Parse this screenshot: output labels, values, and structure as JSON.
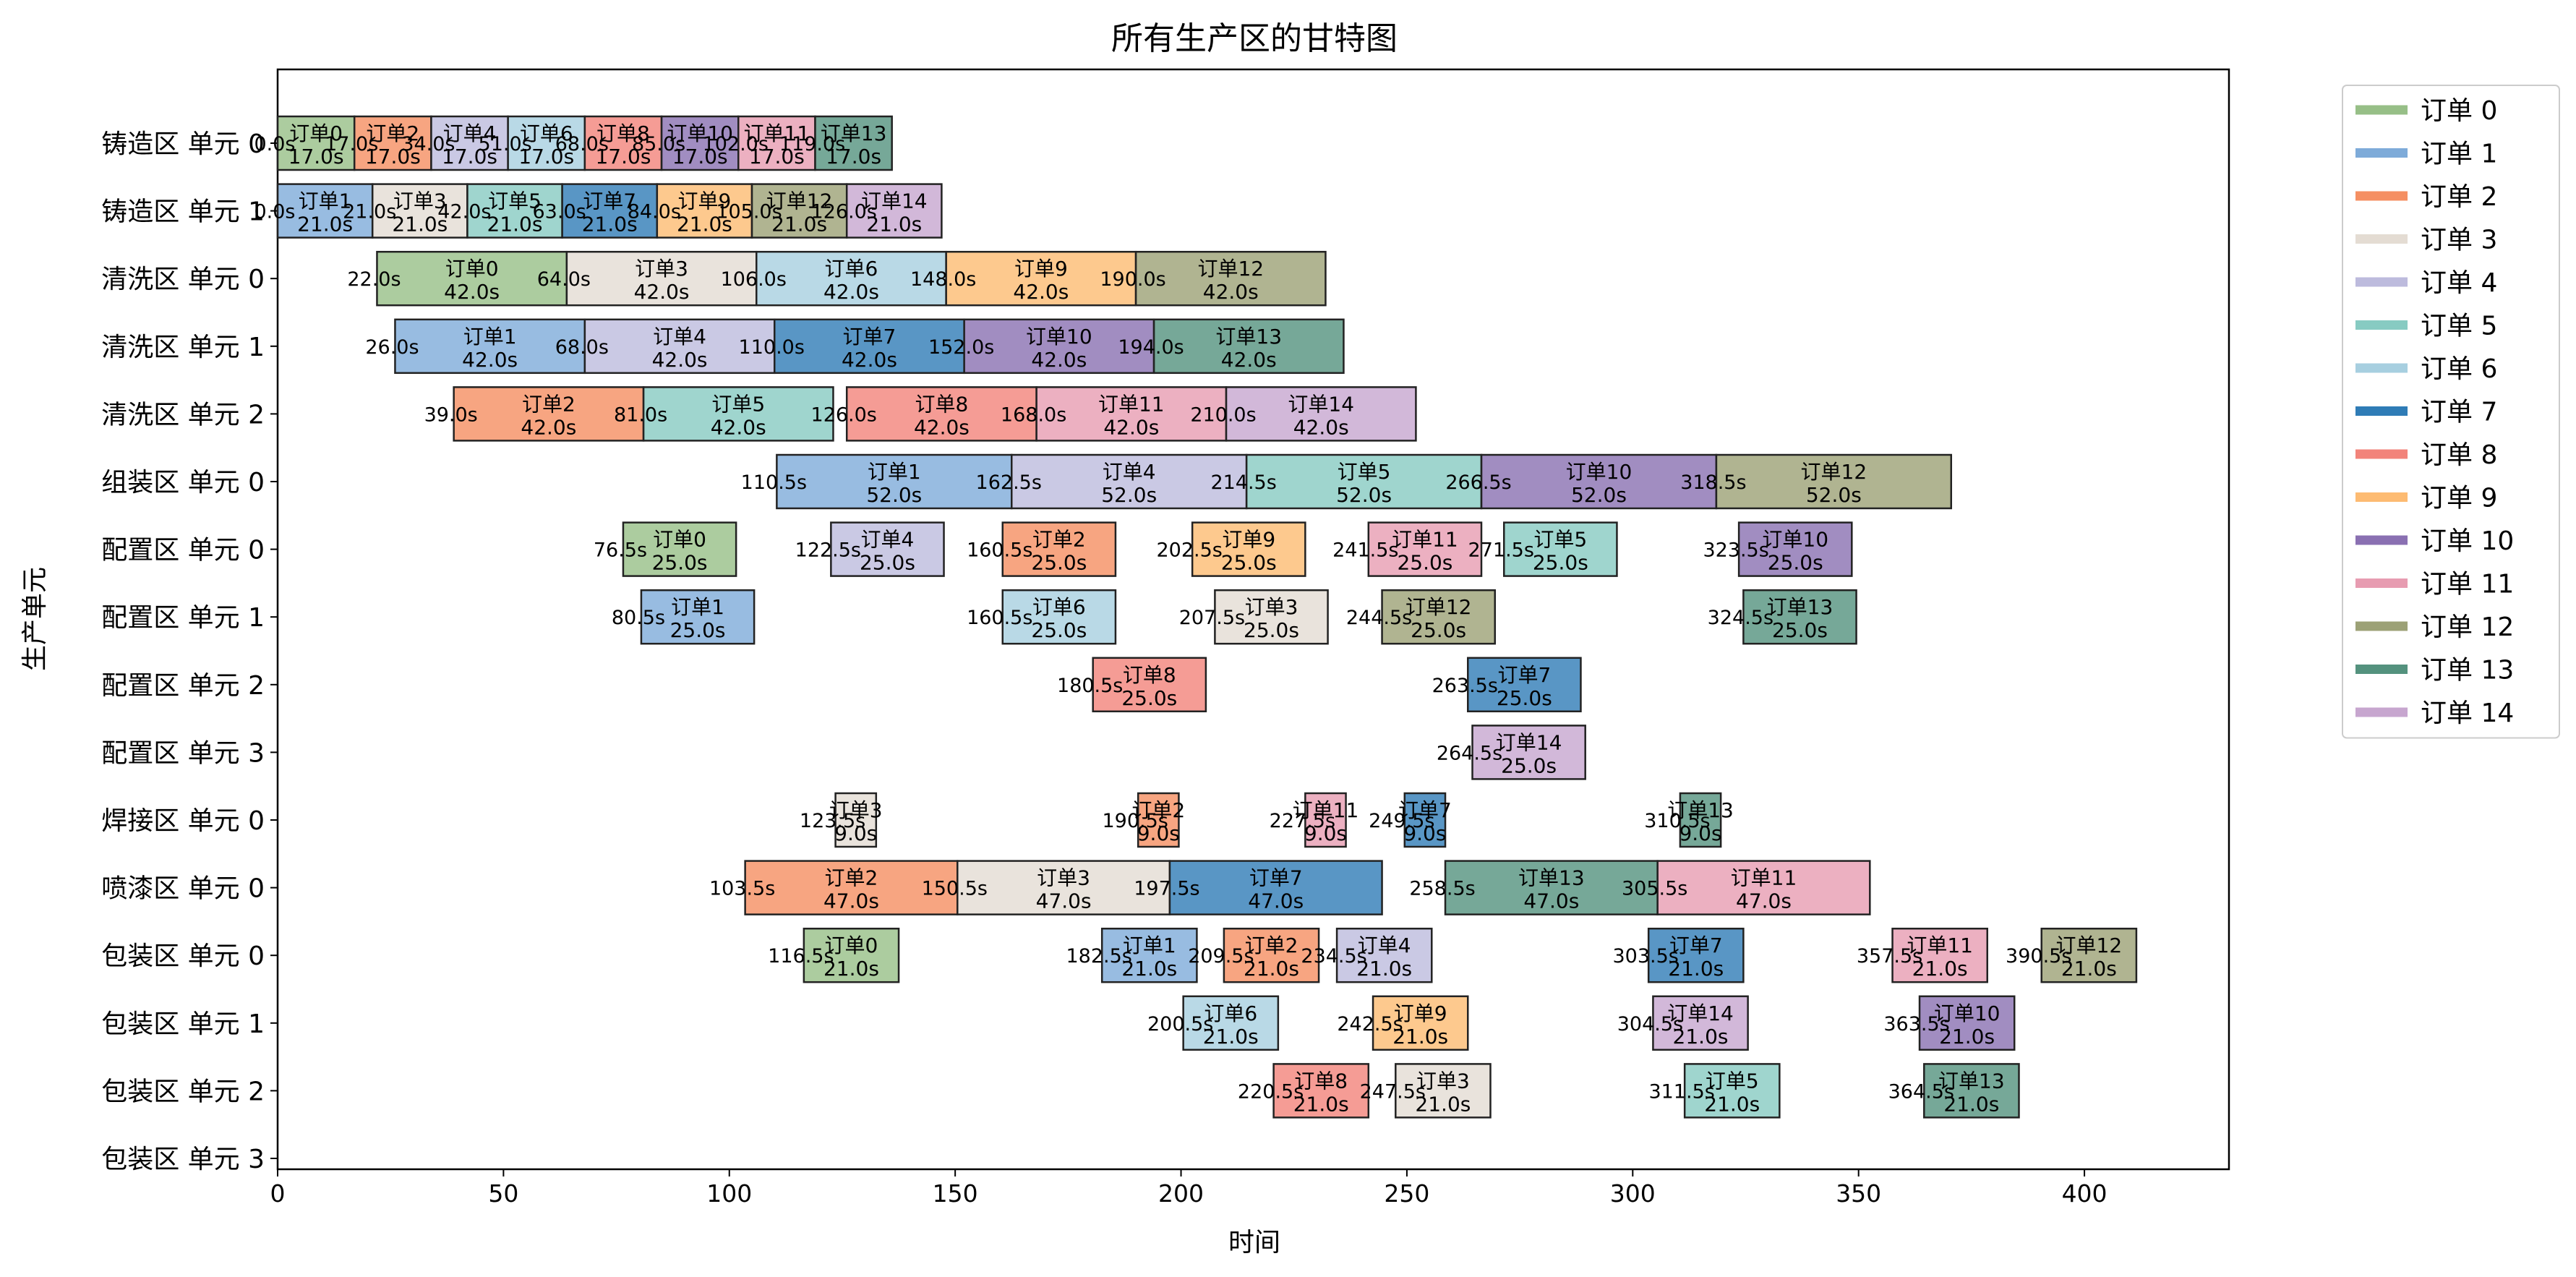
{
  "chart_data": {
    "type": "gantt",
    "title": "所有生产区的甘特图",
    "xlabel": "时间",
    "ylabel": "生产单元",
    "xlim": [
      0,
      432
    ],
    "xticks": [
      0,
      50,
      100,
      150,
      200,
      250,
      300,
      350,
      400
    ],
    "rows": [
      "铸造区 单元 0",
      "铸造区 单元 1",
      "清洗区 单元 0",
      "清洗区 单元 1",
      "清洗区 单元 2",
      "组装区 单元 0",
      "配置区 单元 0",
      "配置区 单元 1",
      "配置区 单元 2",
      "配置区 单元 3",
      "焊接区 单元 0",
      "喷漆区 单元 0",
      "包装区 单元 0",
      "包装区 单元 1",
      "包装区 单元 2",
      "包装区 单元 3"
    ],
    "series": [
      {
        "name": "订单 0",
        "color": "#97bf87"
      },
      {
        "name": "订单 1",
        "color": "#7eabd9"
      },
      {
        "name": "订单 2",
        "color": "#f58f62"
      },
      {
        "name": "订单 3",
        "color": "#e4dcd3"
      },
      {
        "name": "订单 4",
        "color": "#bdbbdd"
      },
      {
        "name": "订单 5",
        "color": "#87cbc2"
      },
      {
        "name": "订单 6",
        "color": "#a7cfe0"
      },
      {
        "name": "订单 7",
        "color": "#2f7cb6"
      },
      {
        "name": "订单 8",
        "color": "#f2837a"
      },
      {
        "name": "订单 9",
        "color": "#fdbb72"
      },
      {
        "name": "订单 10",
        "color": "#8a70b2"
      },
      {
        "name": "订单 11",
        "color": "#e79cb1"
      },
      {
        "name": "订单 12",
        "color": "#9ca176"
      },
      {
        "name": "订单 13",
        "color": "#54927e"
      },
      {
        "name": "订单 14",
        "color": "#c7a6cf"
      }
    ],
    "bars": [
      {
        "row": 0,
        "order": 0,
        "start": 0,
        "duration": 17,
        "label": "订单0",
        "dur_label": "17.0s",
        "start_label": "0.0s"
      },
      {
        "row": 0,
        "order": 2,
        "start": 17,
        "duration": 17,
        "label": "订单2",
        "dur_label": "17.0s",
        "start_label": "17.0s"
      },
      {
        "row": 0,
        "order": 4,
        "start": 34,
        "duration": 17,
        "label": "订单4",
        "dur_label": "17.0s",
        "start_label": "34.0s"
      },
      {
        "row": 0,
        "order": 6,
        "start": 51,
        "duration": 17,
        "label": "订单6",
        "dur_label": "17.0s",
        "start_label": "51.0s"
      },
      {
        "row": 0,
        "order": 8,
        "start": 68,
        "duration": 17,
        "label": "订单8",
        "dur_label": "17.0s",
        "start_label": "68.0s"
      },
      {
        "row": 0,
        "order": 10,
        "start": 85,
        "duration": 17,
        "label": "订单10",
        "dur_label": "17.0s",
        "start_label": "85.0s"
      },
      {
        "row": 0,
        "order": 11,
        "start": 102,
        "duration": 17,
        "label": "订单11",
        "dur_label": "17.0s",
        "start_label": "102.0s"
      },
      {
        "row": 0,
        "order": 13,
        "start": 119,
        "duration": 17,
        "label": "订单13",
        "dur_label": "17.0s",
        "start_label": "119.0s"
      },
      {
        "row": 1,
        "order": 1,
        "start": 0,
        "duration": 21,
        "label": "订单1",
        "dur_label": "21.0s",
        "start_label": "0.0s"
      },
      {
        "row": 1,
        "order": 3,
        "start": 21,
        "duration": 21,
        "label": "订单3",
        "dur_label": "21.0s",
        "start_label": "21.0s"
      },
      {
        "row": 1,
        "order": 5,
        "start": 42,
        "duration": 21,
        "label": "订单5",
        "dur_label": "21.0s",
        "start_label": "42.0s"
      },
      {
        "row": 1,
        "order": 7,
        "start": 63,
        "duration": 21,
        "label": "订单7",
        "dur_label": "21.0s",
        "start_label": "63.0s"
      },
      {
        "row": 1,
        "order": 9,
        "start": 84,
        "duration": 21,
        "label": "订单9",
        "dur_label": "21.0s",
        "start_label": "84.0s"
      },
      {
        "row": 1,
        "order": 12,
        "start": 105,
        "duration": 21,
        "label": "订单12",
        "dur_label": "21.0s",
        "start_label": "105.0s"
      },
      {
        "row": 1,
        "order": 14,
        "start": 126,
        "duration": 21,
        "label": "订单14",
        "dur_label": "21.0s",
        "start_label": "126.0s"
      },
      {
        "row": 2,
        "order": 0,
        "start": 22,
        "duration": 42,
        "label": "订单0",
        "dur_label": "42.0s",
        "start_label": "22.0s"
      },
      {
        "row": 2,
        "order": 3,
        "start": 64,
        "duration": 42,
        "label": "订单3",
        "dur_label": "42.0s",
        "start_label": "64.0s"
      },
      {
        "row": 2,
        "order": 6,
        "start": 106,
        "duration": 42,
        "label": "订单6",
        "dur_label": "42.0s",
        "start_label": "106.0s"
      },
      {
        "row": 2,
        "order": 9,
        "start": 148,
        "duration": 42,
        "label": "订单9",
        "dur_label": "42.0s",
        "start_label": "148.0s"
      },
      {
        "row": 2,
        "order": 12,
        "start": 190,
        "duration": 42,
        "label": "订单12",
        "dur_label": "42.0s",
        "start_label": "190.0s"
      },
      {
        "row": 3,
        "order": 1,
        "start": 26,
        "duration": 42,
        "label": "订单1",
        "dur_label": "42.0s",
        "start_label": "26.0s"
      },
      {
        "row": 3,
        "order": 4,
        "start": 68,
        "duration": 42,
        "label": "订单4",
        "dur_label": "42.0s",
        "start_label": "68.0s"
      },
      {
        "row": 3,
        "order": 7,
        "start": 110,
        "duration": 42,
        "label": "订单7",
        "dur_label": "42.0s",
        "start_label": "110.0s"
      },
      {
        "row": 3,
        "order": 10,
        "start": 152,
        "duration": 42,
        "label": "订单10",
        "dur_label": "42.0s",
        "start_label": "152.0s"
      },
      {
        "row": 3,
        "order": 13,
        "start": 194,
        "duration": 42,
        "label": "订单13",
        "dur_label": "42.0s",
        "start_label": "194.0s"
      },
      {
        "row": 4,
        "order": 2,
        "start": 39,
        "duration": 42,
        "label": "订单2",
        "dur_label": "42.0s",
        "start_label": "39.0s"
      },
      {
        "row": 4,
        "order": 5,
        "start": 81,
        "duration": 42,
        "label": "订单5",
        "dur_label": "42.0s",
        "start_label": "81.0s"
      },
      {
        "row": 4,
        "order": 8,
        "start": 126,
        "duration": 42,
        "label": "订单8",
        "dur_label": "42.0s",
        "start_label": "126.0s"
      },
      {
        "row": 4,
        "order": 11,
        "start": 168,
        "duration": 42,
        "label": "订单11",
        "dur_label": "42.0s",
        "start_label": "168.0s"
      },
      {
        "row": 4,
        "order": 14,
        "start": 210,
        "duration": 42,
        "label": "订单14",
        "dur_label": "42.0s",
        "start_label": "210.0s"
      },
      {
        "row": 5,
        "order": 1,
        "start": 110.5,
        "duration": 52,
        "label": "订单1",
        "dur_label": "52.0s",
        "start_label": "110.5s"
      },
      {
        "row": 5,
        "order": 4,
        "start": 162.5,
        "duration": 52,
        "label": "订单4",
        "dur_label": "52.0s",
        "start_label": "162.5s"
      },
      {
        "row": 5,
        "order": 5,
        "start": 214.5,
        "duration": 52,
        "label": "订单5",
        "dur_label": "52.0s",
        "start_label": "214.5s"
      },
      {
        "row": 5,
        "order": 10,
        "start": 266.5,
        "duration": 52,
        "label": "订单10",
        "dur_label": "52.0s",
        "start_label": "266.5s"
      },
      {
        "row": 5,
        "order": 12,
        "start": 318.5,
        "duration": 52,
        "label": "订单12",
        "dur_label": "52.0s",
        "start_label": "318.5s"
      },
      {
        "row": 6,
        "order": 0,
        "start": 76.5,
        "duration": 25,
        "label": "订单0",
        "dur_label": "25.0s",
        "start_label": "76.5s"
      },
      {
        "row": 6,
        "order": 4,
        "start": 122.5,
        "duration": 25,
        "label": "订单4",
        "dur_label": "25.0s",
        "start_label": "122.5s"
      },
      {
        "row": 6,
        "order": 2,
        "start": 160.5,
        "duration": 25,
        "label": "订单2",
        "dur_label": "25.0s",
        "start_label": "160.5s"
      },
      {
        "row": 6,
        "order": 9,
        "start": 202.5,
        "duration": 25,
        "label": "订单9",
        "dur_label": "25.0s",
        "start_label": "202.5s"
      },
      {
        "row": 6,
        "order": 11,
        "start": 241.5,
        "duration": 25,
        "label": "订单11",
        "dur_label": "25.0s",
        "start_label": "241.5s"
      },
      {
        "row": 6,
        "order": 5,
        "start": 271.5,
        "duration": 25,
        "label": "订单5",
        "dur_label": "25.0s",
        "start_label": "271.5s"
      },
      {
        "row": 6,
        "order": 10,
        "start": 323.5,
        "duration": 25,
        "label": "订单10",
        "dur_label": "25.0s",
        "start_label": "323.5s"
      },
      {
        "row": 7,
        "order": 1,
        "start": 80.5,
        "duration": 25,
        "label": "订单1",
        "dur_label": "25.0s",
        "start_label": "80.5s"
      },
      {
        "row": 7,
        "order": 6,
        "start": 160.5,
        "duration": 25,
        "label": "订单6",
        "dur_label": "25.0s",
        "start_label": "160.5s"
      },
      {
        "row": 7,
        "order": 3,
        "start": 207.5,
        "duration": 25,
        "label": "订单3",
        "dur_label": "25.0s",
        "start_label": "207.5s"
      },
      {
        "row": 7,
        "order": 12,
        "start": 244.5,
        "duration": 25,
        "label": "订单12",
        "dur_label": "25.0s",
        "start_label": "244.5s"
      },
      {
        "row": 7,
        "order": 13,
        "start": 324.5,
        "duration": 25,
        "label": "订单13",
        "dur_label": "25.0s",
        "start_label": "324.5s"
      },
      {
        "row": 8,
        "order": 8,
        "start": 180.5,
        "duration": 25,
        "label": "订单8",
        "dur_label": "25.0s",
        "start_label": "180.5s"
      },
      {
        "row": 8,
        "order": 7,
        "start": 263.5,
        "duration": 25,
        "label": "订单7",
        "dur_label": "25.0s",
        "start_label": "263.5s"
      },
      {
        "row": 9,
        "order": 14,
        "start": 264.5,
        "duration": 25,
        "label": "订单14",
        "dur_label": "25.0s",
        "start_label": "264.5s"
      },
      {
        "row": 10,
        "order": 3,
        "start": 123.5,
        "duration": 9,
        "label": "订单3",
        "dur_label": "9.0s",
        "start_label": "123.5s"
      },
      {
        "row": 10,
        "order": 2,
        "start": 190.5,
        "duration": 9,
        "label": "订单2",
        "dur_label": "9.0s",
        "start_label": "190.5s"
      },
      {
        "row": 10,
        "order": 11,
        "start": 227.5,
        "duration": 9,
        "label": "订单11",
        "dur_label": "9.0s",
        "start_label": "227.5s"
      },
      {
        "row": 10,
        "order": 7,
        "start": 249.5,
        "duration": 9,
        "label": "订单7",
        "dur_label": "9.0s",
        "start_label": "249.5s"
      },
      {
        "row": 10,
        "order": 13,
        "start": 310.5,
        "duration": 9,
        "label": "订单13",
        "dur_label": "9.0s",
        "start_label": "310.5s"
      },
      {
        "row": 11,
        "order": 2,
        "start": 103.5,
        "duration": 47,
        "label": "订单2",
        "dur_label": "47.0s",
        "start_label": "103.5s"
      },
      {
        "row": 11,
        "order": 3,
        "start": 150.5,
        "duration": 47,
        "label": "订单3",
        "dur_label": "47.0s",
        "start_label": "150.5s"
      },
      {
        "row": 11,
        "order": 7,
        "start": 197.5,
        "duration": 47,
        "label": "订单7",
        "dur_label": "47.0s",
        "start_label": "197.5s"
      },
      {
        "row": 11,
        "order": 13,
        "start": 258.5,
        "duration": 47,
        "label": "订单13",
        "dur_label": "47.0s",
        "start_label": "258.5s"
      },
      {
        "row": 11,
        "order": 11,
        "start": 305.5,
        "duration": 47,
        "label": "订单11",
        "dur_label": "47.0s",
        "start_label": "305.5s"
      },
      {
        "row": 12,
        "order": 0,
        "start": 116.5,
        "duration": 21,
        "label": "订单0",
        "dur_label": "21.0s",
        "start_label": "116.5s"
      },
      {
        "row": 12,
        "order": 1,
        "start": 182.5,
        "duration": 21,
        "label": "订单1",
        "dur_label": "21.0s",
        "start_label": "182.5s"
      },
      {
        "row": 12,
        "order": 2,
        "start": 209.5,
        "duration": 21,
        "label": "订单2",
        "dur_label": "21.0s",
        "start_label": "209.5s"
      },
      {
        "row": 12,
        "order": 4,
        "start": 234.5,
        "duration": 21,
        "label": "订单4",
        "dur_label": "21.0s",
        "start_label": "234.5s"
      },
      {
        "row": 12,
        "order": 7,
        "start": 303.5,
        "duration": 21,
        "label": "订单7",
        "dur_label": "21.0s",
        "start_label": "303.5s"
      },
      {
        "row": 12,
        "order": 11,
        "start": 357.5,
        "duration": 21,
        "label": "订单11",
        "dur_label": "21.0s",
        "start_label": "357.5s"
      },
      {
        "row": 12,
        "order": 12,
        "start": 390.5,
        "duration": 21,
        "label": "订单12",
        "dur_label": "21.0s",
        "start_label": "390.5s"
      },
      {
        "row": 13,
        "order": 6,
        "start": 200.5,
        "duration": 21,
        "label": "订单6",
        "dur_label": "21.0s",
        "start_label": "200.5s"
      },
      {
        "row": 13,
        "order": 9,
        "start": 242.5,
        "duration": 21,
        "label": "订单9",
        "dur_label": "21.0s",
        "start_label": "242.5s"
      },
      {
        "row": 13,
        "order": 14,
        "start": 304.5,
        "duration": 21,
        "label": "订单14",
        "dur_label": "21.0s",
        "start_label": "304.5s"
      },
      {
        "row": 13,
        "order": 10,
        "start": 363.5,
        "duration": 21,
        "label": "订单10",
        "dur_label": "21.0s",
        "start_label": "363.5s"
      },
      {
        "row": 14,
        "order": 8,
        "start": 220.5,
        "duration": 21,
        "label": "订单8",
        "dur_label": "21.0s",
        "start_label": "220.5s"
      },
      {
        "row": 14,
        "order": 3,
        "start": 247.5,
        "duration": 21,
        "label": "订单3",
        "dur_label": "21.0s",
        "start_label": "247.5s"
      },
      {
        "row": 14,
        "order": 5,
        "start": 311.5,
        "duration": 21,
        "label": "订单5",
        "dur_label": "21.0s",
        "start_label": "311.5s"
      },
      {
        "row": 14,
        "order": 13,
        "start": 364.5,
        "duration": 21,
        "label": "订单13",
        "dur_label": "21.0s",
        "start_label": "364.5s"
      }
    ]
  }
}
